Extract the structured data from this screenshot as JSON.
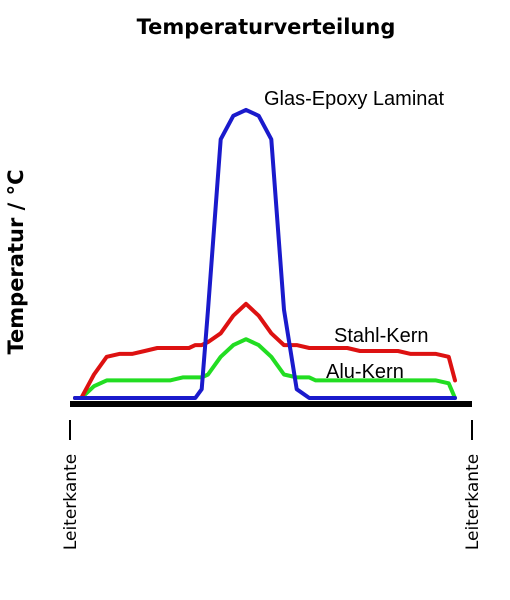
{
  "chart_data": {
    "type": "line",
    "title": "Temperaturverteilung",
    "xlabel": "",
    "ylabel": "Temperatur / °C",
    "x_edge_labels": [
      "Leiterkante",
      "Leiterkante"
    ],
    "x": [
      0,
      1,
      3,
      5,
      7,
      9,
      11,
      13,
      15,
      17,
      18,
      19,
      20,
      21,
      23,
      25,
      27,
      29,
      31,
      33,
      35,
      37,
      38,
      39,
      40,
      41,
      43,
      45,
      47,
      49,
      51,
      53,
      55,
      57,
      59,
      60
    ],
    "ylim": [
      0,
      100
    ],
    "xlim": [
      0,
      60
    ],
    "grid": false,
    "legend": "inline",
    "series": [
      {
        "name": "Glas-Epoxy Laminat",
        "color": "#1a1acc",
        "values": [
          0,
          0,
          0,
          0,
          0,
          0,
          0,
          0,
          0,
          0,
          0,
          0,
          3,
          30,
          88,
          96,
          98,
          96,
          88,
          30,
          3,
          0,
          0,
          0,
          0,
          0,
          0,
          0,
          0,
          0,
          0,
          0,
          0,
          0,
          0,
          0
        ]
      },
      {
        "name": "Stahl-Kern",
        "color": "#dd1111",
        "values": [
          0,
          0,
          8,
          14,
          15,
          15,
          16,
          17,
          17,
          17,
          17,
          18,
          18,
          19,
          22,
          28,
          32,
          28,
          22,
          18,
          18,
          17,
          17,
          17,
          17,
          17,
          17,
          16,
          16,
          16,
          16,
          15,
          15,
          15,
          14,
          6
        ]
      },
      {
        "name": "Alu-Kern",
        "color": "#22dd22",
        "values": [
          0,
          0,
          4,
          6,
          6,
          6,
          6,
          6,
          6,
          7,
          7,
          7,
          7,
          8,
          14,
          18,
          20,
          18,
          14,
          8,
          7,
          7,
          6,
          6,
          6,
          6,
          6,
          6,
          6,
          6,
          6,
          6,
          6,
          6,
          5,
          0
        ]
      }
    ],
    "colors": {
      "axis": "#000000"
    }
  }
}
